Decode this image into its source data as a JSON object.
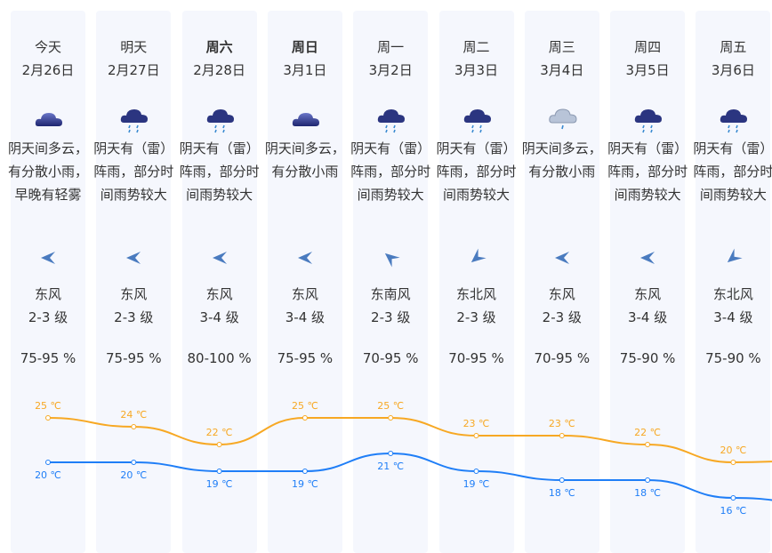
{
  "days": [
    {
      "week": "今天",
      "date": "2月26日",
      "bold": false,
      "icon": "cloudy-icon",
      "desc": "阴天间多云，有分散小雨，早晚有轻雾",
      "wind_dir": "东风",
      "wind_level": "2-3 级",
      "wind_angle": 0,
      "humidity": "75-95 %",
      "high": 25,
      "low": 20,
      "high_label": "25 ℃",
      "low_label": "20 ℃"
    },
    {
      "week": "明天",
      "date": "2月27日",
      "bold": false,
      "icon": "rain-icon",
      "desc": "阴天有（雷）阵雨，部分时间雨势较大",
      "wind_dir": "东风",
      "wind_level": "2-3 级",
      "wind_angle": 0,
      "humidity": "75-95 %",
      "high": 24,
      "low": 20,
      "high_label": "24 ℃",
      "low_label": "20 ℃"
    },
    {
      "week": "周六",
      "date": "2月28日",
      "bold": true,
      "icon": "rain-icon",
      "desc": "阴天有（雷）阵雨，部分时间雨势较大",
      "wind_dir": "东风",
      "wind_level": "3-4 级",
      "wind_angle": 0,
      "humidity": "80-100 %",
      "high": 22,
      "low": 19,
      "high_label": "22 ℃",
      "low_label": "19 ℃"
    },
    {
      "week": "周日",
      "date": "3月1日",
      "bold": true,
      "icon": "cloudy-icon",
      "desc": "阴天间多云，有分散小雨",
      "wind_dir": "东风",
      "wind_level": "3-4 级",
      "wind_angle": 0,
      "humidity": "75-95 %",
      "high": 25,
      "low": 19,
      "high_label": "25 ℃",
      "low_label": "19 ℃"
    },
    {
      "week": "周一",
      "date": "3月2日",
      "bold": false,
      "icon": "rain-icon",
      "desc": "阴天有（雷）阵雨，部分时间雨势较大",
      "wind_dir": "东南风",
      "wind_level": "2-3 级",
      "wind_angle": 40,
      "humidity": "70-95 %",
      "high": 25,
      "low": 21,
      "high_label": "25 ℃",
      "low_label": "21 ℃"
    },
    {
      "week": "周二",
      "date": "3月3日",
      "bold": false,
      "icon": "rain-icon",
      "desc": "阴天有（雷）阵雨，部分时间雨势较大",
      "wind_dir": "东北风",
      "wind_level": "2-3 级",
      "wind_angle": -40,
      "humidity": "70-95 %",
      "high": 23,
      "low": 19,
      "high_label": "23 ℃",
      "low_label": "19 ℃"
    },
    {
      "week": "周三",
      "date": "3月4日",
      "bold": false,
      "icon": "light-rain-icon",
      "desc": "阴天间多云，有分散小雨",
      "wind_dir": "东风",
      "wind_level": "2-3 级",
      "wind_angle": 0,
      "humidity": "70-95 %",
      "high": 23,
      "low": 18,
      "high_label": "23 ℃",
      "low_label": "18 ℃"
    },
    {
      "week": "周四",
      "date": "3月5日",
      "bold": false,
      "icon": "rain-icon",
      "desc": "阴天有（雷）阵雨，部分时间雨势较大",
      "wind_dir": "东风",
      "wind_level": "3-4 级",
      "wind_angle": 0,
      "humidity": "75-90 %",
      "high": 22,
      "low": 18,
      "high_label": "22 ℃",
      "low_label": "18 ℃"
    },
    {
      "week": "周五",
      "date": "3月6日",
      "bold": false,
      "icon": "rain-icon",
      "desc": "阴天有（雷）阵雨，部分时间雨势较大",
      "wind_dir": "东北风",
      "wind_level": "3-4 级",
      "wind_angle": -40,
      "humidity": "75-90 %",
      "high": 20,
      "low": 16,
      "high_label": "20 ℃",
      "low_label": "16 ℃"
    }
  ],
  "colors": {
    "high": "#f7a823",
    "low": "#1f7ef7",
    "card": "#f5f7fd",
    "wind": "#4a7bbf"
  }
}
